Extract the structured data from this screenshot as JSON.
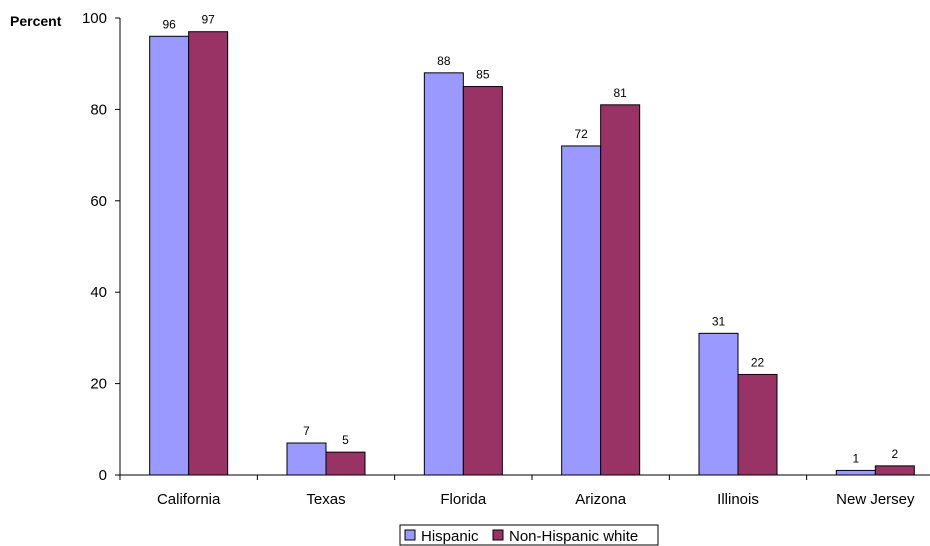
{
  "chart_data": {
    "type": "bar",
    "title": "",
    "ylabel": "Percent",
    "xlabel": "",
    "ylim": [
      0,
      100
    ],
    "yticks": [
      0,
      20,
      40,
      60,
      80,
      100
    ],
    "grid": false,
    "legend_position": "bottom",
    "categories": [
      "California",
      "Texas",
      "Florida",
      "Arizona",
      "Illinois",
      "New Jersey"
    ],
    "series": [
      {
        "name": "Hispanic",
        "color": "#9999ff",
        "values": [
          96,
          7,
          88,
          72,
          31,
          1
        ]
      },
      {
        "name": "Non-Hispanic white",
        "color": "#993366",
        "values": [
          97,
          5,
          85,
          81,
          22,
          2
        ]
      }
    ]
  }
}
